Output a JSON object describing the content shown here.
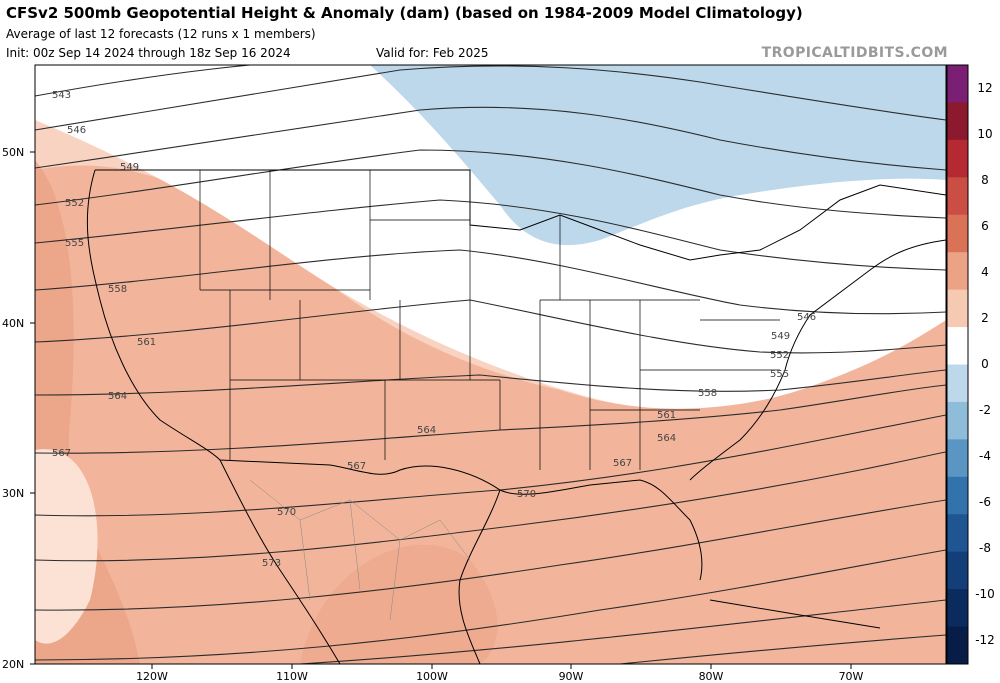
{
  "header": {
    "title": "CFSv2 500mb Geopotential Height & Anomaly (dam) (based on 1984-2009 Model Climatology)",
    "subtitle": "Average of last 12 forecasts (12 runs x 1 members)",
    "init": "Init: 00z Sep 14 2024 through 18z Sep 16 2024",
    "valid": "Valid for: Feb 2025",
    "credit": "TROPICALTIDBITS.COM"
  },
  "map": {
    "lon_ticks": [
      "120W",
      "110W",
      "100W",
      "90W",
      "80W",
      "70W"
    ],
    "lat_ticks": [
      "50N",
      "40N",
      "30N",
      "20N"
    ],
    "contour_labels": [
      "543",
      "546",
      "549",
      "552",
      "555",
      "558",
      "561",
      "564",
      "567",
      "570",
      "573"
    ],
    "colors": {
      "positive_light": "#f8d3c1",
      "positive_mid": "#f2b59b",
      "positive_strong": "#e6906f",
      "negative": "#bcd8ea",
      "contour": "#2b2b2b",
      "border": "#000000"
    }
  },
  "colorbar": {
    "labels": [
      "12",
      "10",
      "8",
      "6",
      "4",
      "2",
      "0",
      "-2",
      "-4",
      "-6",
      "-8",
      "-10",
      "-12"
    ],
    "colors": [
      "#7a1f74",
      "#8b1a2e",
      "#b52a32",
      "#cb4e44",
      "#da7257",
      "#eca284",
      "#f6c9b3",
      "#ffffff",
      "#bcd8ea",
      "#8fbcd9",
      "#5a95c4",
      "#3373ad",
      "#1f5592",
      "#143e78",
      "#0b2b5f",
      "#071d47"
    ]
  }
}
